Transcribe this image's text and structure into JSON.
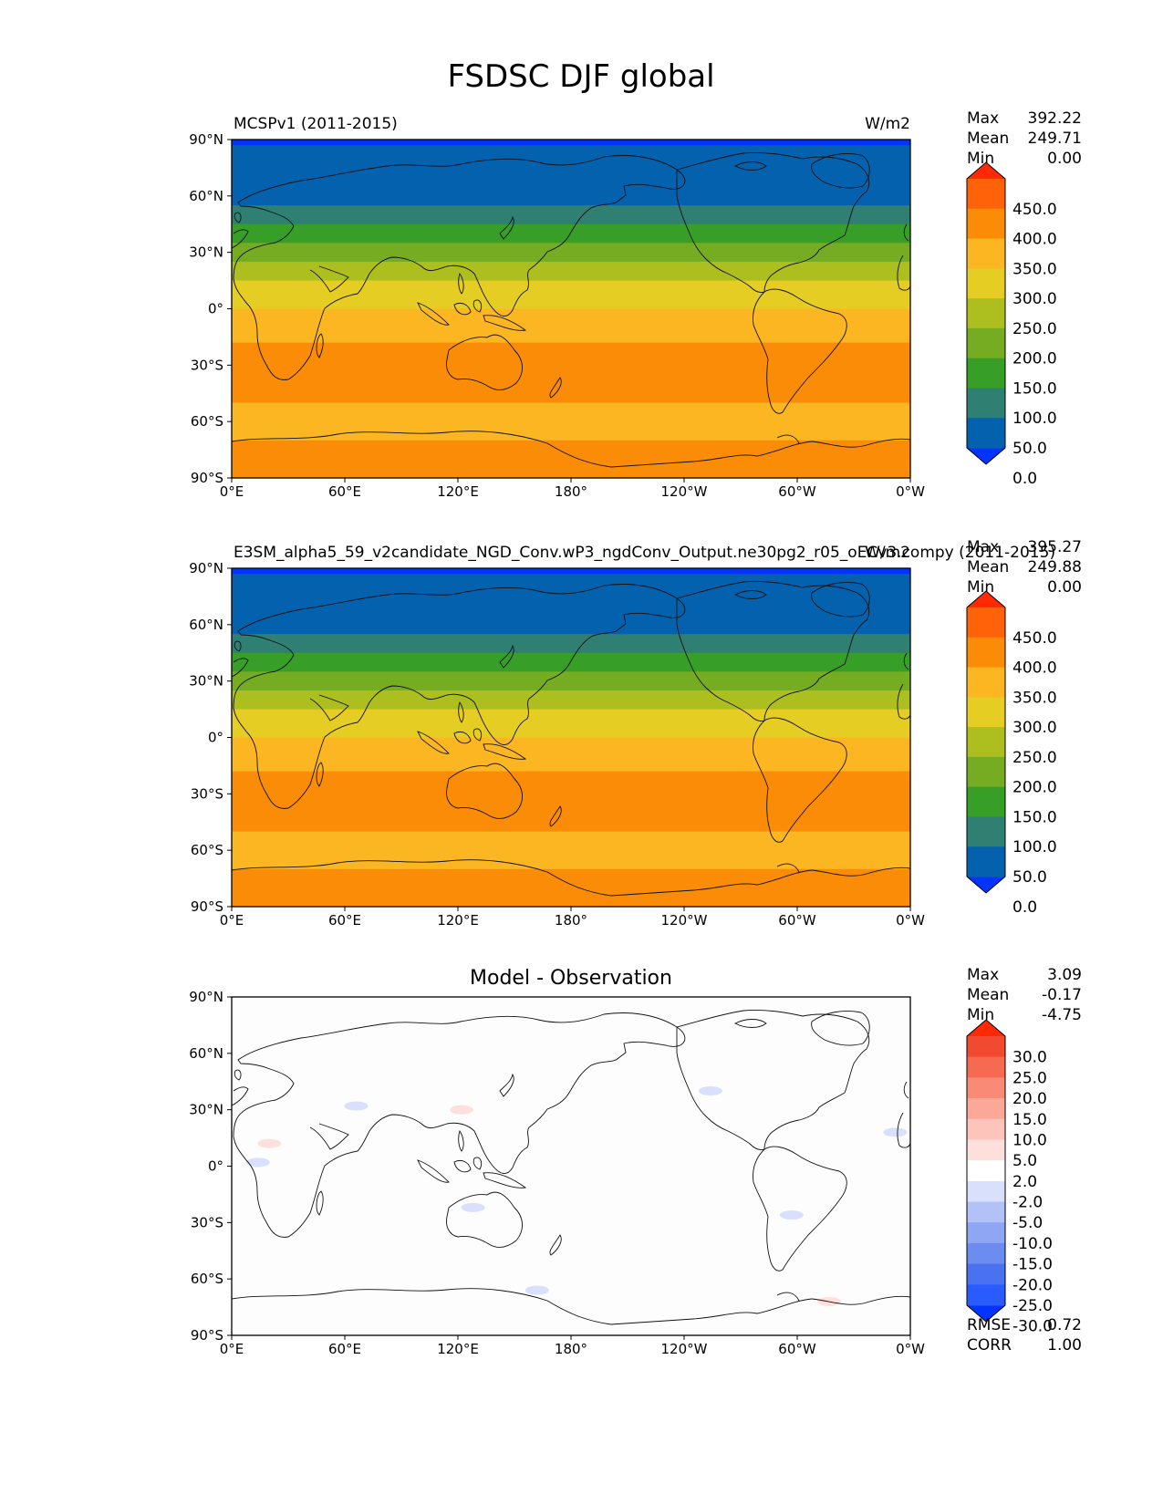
{
  "title": "FSDSC DJF global",
  "tick_labels": {
    "x": [
      "0°E",
      "60°E",
      "120°E",
      "180°",
      "120°W",
      "60°W",
      "0°W"
    ],
    "y": [
      "90°N",
      "60°N",
      "30°N",
      "0°",
      "30°S",
      "60°S",
      "90°S"
    ]
  },
  "colors": {
    "field_levels": [
      "#0334ff",
      "#0461ad",
      "#2f7f72",
      "#379e28",
      "#76ac22",
      "#adbf1e",
      "#e6cd23",
      "#fbb622",
      "#fb8c08",
      "#ff6208",
      "#ff2a04"
    ],
    "diff_levels": [
      "#0334ff",
      "#2a5bff",
      "#4a72f0",
      "#6c8cf0",
      "#8fa6f4",
      "#b2c2f8",
      "#d8e0fb",
      "#ffffff",
      "#fde0dc",
      "#fcc4bb",
      "#fba898",
      "#f98a76",
      "#f66a52",
      "#f24a30",
      "#ff2a04"
    ]
  },
  "chart_data": [
    {
      "type": "heatmap",
      "panel": "test",
      "left_title": "MCSPv1 (2011-2015)",
      "right_title": "W/m2",
      "stats": {
        "labels": [
          "Max",
          "Mean",
          "Min"
        ],
        "values": [
          "392.22",
          "249.71",
          "0.00"
        ]
      },
      "colorbar": {
        "labels": [
          "450.0",
          "400.0",
          "350.0",
          "300.0",
          "250.0",
          "200.0",
          "150.0",
          "100.0",
          "50.0",
          "0.0"
        ],
        "extend": "both"
      },
      "xlim": [
        0,
        360
      ],
      "ylim": [
        -90,
        90
      ],
      "zonal_bands": [
        {
          "lat_from": 90,
          "lat_to": 87,
          "value": -10
        },
        {
          "lat_from": 87,
          "lat_to": 80,
          "value": 25
        },
        {
          "lat_from": 80,
          "lat_to": 55,
          "value": 40
        },
        {
          "lat_from": 55,
          "lat_to": 45,
          "value": 75
        },
        {
          "lat_from": 45,
          "lat_to": 35,
          "value": 125
        },
        {
          "lat_from": 35,
          "lat_to": 25,
          "value": 175
        },
        {
          "lat_from": 25,
          "lat_to": 15,
          "value": 225
        },
        {
          "lat_from": 15,
          "lat_to": 0,
          "value": 275
        },
        {
          "lat_from": 0,
          "lat_to": -18,
          "value": 320
        },
        {
          "lat_from": -18,
          "lat_to": -50,
          "value": 370
        },
        {
          "lat_from": -50,
          "lat_to": -70,
          "value": 320
        },
        {
          "lat_from": -70,
          "lat_to": -90,
          "value": 370
        }
      ]
    },
    {
      "type": "heatmap",
      "panel": "reference",
      "left_title": "E3SM_alpha5_59_v2candidate_NGD_Conv.wP3_ngdConv_Output.ne30pg2_r05_oECv3.compy (2011-2015)",
      "right_title": "W/m2",
      "stats": {
        "labels": [
          "Max",
          "Mean",
          "Min"
        ],
        "values": [
          "395.27",
          "249.88",
          "0.00"
        ]
      },
      "colorbar": {
        "labels": [
          "450.0",
          "400.0",
          "350.0",
          "300.0",
          "250.0",
          "200.0",
          "150.0",
          "100.0",
          "50.0",
          "0.0"
        ],
        "extend": "both"
      },
      "xlim": [
        0,
        360
      ],
      "ylim": [
        -90,
        90
      ],
      "zonal_bands": [
        {
          "lat_from": 90,
          "lat_to": 87,
          "value": -10
        },
        {
          "lat_from": 87,
          "lat_to": 80,
          "value": 25
        },
        {
          "lat_from": 80,
          "lat_to": 55,
          "value": 40
        },
        {
          "lat_from": 55,
          "lat_to": 45,
          "value": 75
        },
        {
          "lat_from": 45,
          "lat_to": 35,
          "value": 125
        },
        {
          "lat_from": 35,
          "lat_to": 25,
          "value": 175
        },
        {
          "lat_from": 25,
          "lat_to": 15,
          "value": 225
        },
        {
          "lat_from": 15,
          "lat_to": 0,
          "value": 275
        },
        {
          "lat_from": 0,
          "lat_to": -18,
          "value": 320
        },
        {
          "lat_from": -18,
          "lat_to": -50,
          "value": 370
        },
        {
          "lat_from": -50,
          "lat_to": -70,
          "value": 320
        },
        {
          "lat_from": -70,
          "lat_to": -90,
          "value": 370
        }
      ]
    },
    {
      "type": "heatmap",
      "panel": "difference",
      "center_title": "Model - Observation",
      "stats": {
        "labels": [
          "Max",
          "Mean",
          "Min"
        ],
        "values": [
          "3.09",
          "-0.17",
          "-4.75"
        ]
      },
      "colorbar": {
        "labels": [
          "30.0",
          "25.0",
          "20.0",
          "15.0",
          "10.0",
          "5.0",
          "2.0",
          "-2.0",
          "-5.0",
          "-10.0",
          "-15.0",
          "-20.0",
          "-25.0",
          "-30.0"
        ],
        "extend": "both"
      },
      "metrics": {
        "labels": [
          "RMSE",
          "CORR"
        ],
        "values": [
          "0.72",
          "1.00"
        ]
      },
      "xlim": [
        0,
        360
      ],
      "ylim": [
        -90,
        90
      ],
      "patches": [
        {
          "lon": 66,
          "lat": 32,
          "value": -3
        },
        {
          "lon": 122,
          "lat": 30,
          "value": 3
        },
        {
          "lon": 14,
          "lat": 2,
          "value": -3
        },
        {
          "lon": 20,
          "lat": 12,
          "value": 3
        },
        {
          "lon": 128,
          "lat": -22,
          "value": -3
        },
        {
          "lon": 297,
          "lat": -26,
          "value": -3
        },
        {
          "lon": 317,
          "lat": -72,
          "value": 3
        },
        {
          "lon": 162,
          "lat": -66,
          "value": -3
        },
        {
          "lon": 254,
          "lat": 40,
          "value": -3
        },
        {
          "lon": 352,
          "lat": 18,
          "value": -3
        }
      ]
    }
  ]
}
